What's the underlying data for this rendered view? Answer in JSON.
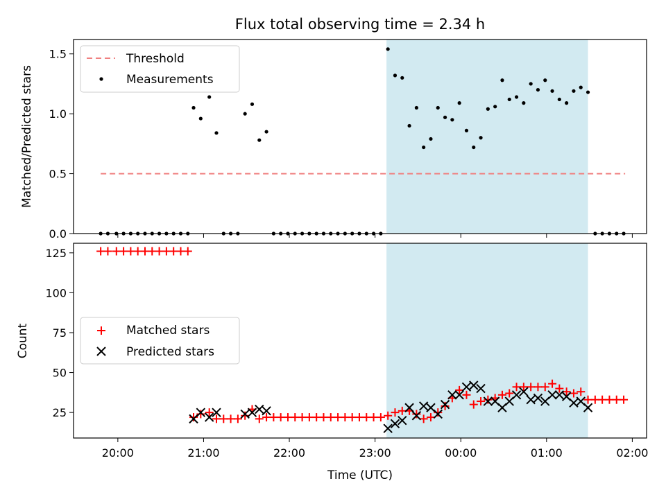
{
  "chart_data": [
    {
      "type": "scatter",
      "title": "Flux total observing time = 2.34 h",
      "xlabel": "",
      "ylabel": "Matched/Predicted stars",
      "xlim": [
        "19:29",
        "02:10"
      ],
      "ylim": [
        0,
        1.62
      ],
      "yticks": [
        0,
        0.5,
        1.0,
        1.5
      ],
      "ytick_labels": [
        "0.0",
        "0.5",
        "1.0",
        "1.5"
      ],
      "xticks": [
        "20:00",
        "21:00",
        "22:00",
        "23:00",
        "00:00",
        "01:00",
        "02:00"
      ],
      "legend": {
        "placement": "top-left",
        "entries": [
          "Threshold",
          "Measurements"
        ]
      },
      "colors": {
        "threshold": "#f08080",
        "measurement": "#000000",
        "span": "#add8e6"
      },
      "threshold": {
        "value": 0.5,
        "x_range": [
          "19:48",
          "01:55"
        ]
      },
      "highlight_span": [
        "23:08",
        "01:29"
      ],
      "series": [
        {
          "name": "Measurements",
          "points": [
            [
              "19:48",
              0
            ],
            [
              "19:53",
              0
            ],
            [
              "19:59",
              0
            ],
            [
              "20:04",
              0
            ],
            [
              "20:09",
              0
            ],
            [
              "20:14",
              0
            ],
            [
              "20:19",
              0
            ],
            [
              "20:24",
              0
            ],
            [
              "20:29",
              0
            ],
            [
              "20:34",
              0
            ],
            [
              "20:39",
              0
            ],
            [
              "20:44",
              0
            ],
            [
              "20:49",
              0
            ],
            [
              "20:53",
              1.05
            ],
            [
              "20:58",
              0.96
            ],
            [
              "21:04",
              1.14
            ],
            [
              "21:09",
              0.84
            ],
            [
              "21:14",
              0
            ],
            [
              "21:19",
              0
            ],
            [
              "21:24",
              0
            ],
            [
              "21:29",
              1.0
            ],
            [
              "21:34",
              1.08
            ],
            [
              "21:39",
              0.78
            ],
            [
              "21:44",
              0.85
            ],
            [
              "21:49",
              0
            ],
            [
              "21:54",
              0
            ],
            [
              "21:59",
              0
            ],
            [
              "22:04",
              0
            ],
            [
              "22:09",
              0
            ],
            [
              "22:14",
              0
            ],
            [
              "22:19",
              0
            ],
            [
              "22:24",
              0
            ],
            [
              "22:29",
              0
            ],
            [
              "22:34",
              0
            ],
            [
              "22:39",
              0
            ],
            [
              "22:44",
              0
            ],
            [
              "22:49",
              0
            ],
            [
              "22:54",
              0
            ],
            [
              "22:59",
              0
            ],
            [
              "23:04",
              0
            ],
            [
              "23:09",
              1.54
            ],
            [
              "23:14",
              1.32
            ],
            [
              "23:19",
              1.3
            ],
            [
              "23:24",
              0.9
            ],
            [
              "23:29",
              1.05
            ],
            [
              "23:34",
              0.72
            ],
            [
              "23:39",
              0.79
            ],
            [
              "23:44",
              1.05
            ],
            [
              "23:49",
              0.97
            ],
            [
              "23:54",
              0.95
            ],
            [
              "23:59",
              1.09
            ],
            [
              "00:04",
              0.86
            ],
            [
              "00:09",
              0.72
            ],
            [
              "00:14",
              0.8
            ],
            [
              "00:19",
              1.04
            ],
            [
              "00:24",
              1.06
            ],
            [
              "00:29",
              1.28
            ],
            [
              "00:34",
              1.12
            ],
            [
              "00:39",
              1.14
            ],
            [
              "00:44",
              1.09
            ],
            [
              "00:49",
              1.25
            ],
            [
              "00:54",
              1.2
            ],
            [
              "00:59",
              1.28
            ],
            [
              "01:04",
              1.19
            ],
            [
              "01:09",
              1.12
            ],
            [
              "01:14",
              1.09
            ],
            [
              "01:19",
              1.19
            ],
            [
              "01:24",
              1.22
            ],
            [
              "01:29",
              1.18
            ],
            [
              "01:34",
              0
            ],
            [
              "01:39",
              0
            ],
            [
              "01:44",
              0
            ],
            [
              "01:49",
              0
            ],
            [
              "01:54",
              0
            ]
          ]
        }
      ]
    },
    {
      "type": "scatter",
      "title": "",
      "xlabel": "Time (UTC)",
      "ylabel": "Count",
      "xlim": [
        "19:29",
        "02:10"
      ],
      "ylim": [
        9,
        131
      ],
      "yticks": [
        25,
        50,
        75,
        100,
        125
      ],
      "xticks": [
        "20:00",
        "21:00",
        "22:00",
        "23:00",
        "00:00",
        "01:00",
        "02:00"
      ],
      "legend": {
        "placement": "center-left",
        "entries": [
          "Matched stars",
          "Predicted stars"
        ]
      },
      "colors": {
        "matched": "#ff0000",
        "predicted": "#000000",
        "span": "#add8e6"
      },
      "highlight_span": [
        "23:08",
        "01:29"
      ],
      "series": [
        {
          "name": "Matched stars",
          "marker": "+",
          "points": [
            [
              "19:48",
              126
            ],
            [
              "19:53",
              126
            ],
            [
              "19:59",
              126
            ],
            [
              "20:04",
              126
            ],
            [
              "20:09",
              126
            ],
            [
              "20:14",
              126
            ],
            [
              "20:19",
              126
            ],
            [
              "20:24",
              126
            ],
            [
              "20:29",
              126
            ],
            [
              "20:34",
              126
            ],
            [
              "20:39",
              126
            ],
            [
              "20:44",
              126
            ],
            [
              "20:49",
              126
            ],
            [
              "20:53",
              22
            ],
            [
              "20:58",
              24
            ],
            [
              "21:04",
              25
            ],
            [
              "21:09",
              21
            ],
            [
              "21:14",
              21
            ],
            [
              "21:19",
              21
            ],
            [
              "21:24",
              21
            ],
            [
              "21:29",
              23
            ],
            [
              "21:34",
              27
            ],
            [
              "21:39",
              21
            ],
            [
              "21:44",
              22
            ],
            [
              "21:49",
              22
            ],
            [
              "21:54",
              22
            ],
            [
              "21:59",
              22
            ],
            [
              "22:04",
              22
            ],
            [
              "22:09",
              22
            ],
            [
              "22:14",
              22
            ],
            [
              "22:19",
              22
            ],
            [
              "22:24",
              22
            ],
            [
              "22:29",
              22
            ],
            [
              "22:34",
              22
            ],
            [
              "22:39",
              22
            ],
            [
              "22:44",
              22
            ],
            [
              "22:49",
              22
            ],
            [
              "22:54",
              22
            ],
            [
              "22:59",
              22
            ],
            [
              "23:04",
              22
            ],
            [
              "23:09",
              23
            ],
            [
              "23:14",
              25
            ],
            [
              "23:19",
              26
            ],
            [
              "23:24",
              26
            ],
            [
              "23:29",
              24
            ],
            [
              "23:34",
              21
            ],
            [
              "23:39",
              22
            ],
            [
              "23:44",
              25
            ],
            [
              "23:49",
              29
            ],
            [
              "23:54",
              34
            ],
            [
              "23:59",
              39
            ],
            [
              "00:04",
              36
            ],
            [
              "00:09",
              30
            ],
            [
              "00:14",
              32
            ],
            [
              "00:19",
              33
            ],
            [
              "00:24",
              34
            ],
            [
              "00:29",
              36
            ],
            [
              "00:34",
              37
            ],
            [
              "00:39",
              41
            ],
            [
              "00:44",
              41
            ],
            [
              "00:49",
              41
            ],
            [
              "00:54",
              41
            ],
            [
              "00:59",
              41
            ],
            [
              "01:04",
              43
            ],
            [
              "01:09",
              40
            ],
            [
              "01:14",
              38
            ],
            [
              "01:19",
              37
            ],
            [
              "01:24",
              38
            ],
            [
              "01:29",
              33
            ],
            [
              "01:34",
              33
            ],
            [
              "01:39",
              33
            ],
            [
              "01:44",
              33
            ],
            [
              "01:49",
              33
            ],
            [
              "01:54",
              33
            ]
          ]
        },
        {
          "name": "Predicted stars",
          "marker": "x",
          "points": [
            [
              "20:53",
              21
            ],
            [
              "20:58",
              25
            ],
            [
              "21:04",
              22
            ],
            [
              "21:09",
              25
            ],
            [
              "21:29",
              24
            ],
            [
              "21:34",
              25
            ],
            [
              "21:39",
              27
            ],
            [
              "21:44",
              26
            ],
            [
              "23:09",
              15
            ],
            [
              "23:14",
              18
            ],
            [
              "23:19",
              20
            ],
            [
              "23:24",
              28
            ],
            [
              "23:29",
              23
            ],
            [
              "23:34",
              29
            ],
            [
              "23:39",
              28
            ],
            [
              "23:44",
              24
            ],
            [
              "23:49",
              30
            ],
            [
              "23:54",
              36
            ],
            [
              "23:59",
              36
            ],
            [
              "00:04",
              41
            ],
            [
              "00:09",
              42
            ],
            [
              "00:14",
              40
            ],
            [
              "00:19",
              32
            ],
            [
              "00:24",
              32
            ],
            [
              "00:29",
              28
            ],
            [
              "00:34",
              32
            ],
            [
              "00:39",
              36
            ],
            [
              "00:44",
              38
            ],
            [
              "00:49",
              33
            ],
            [
              "00:54",
              34
            ],
            [
              "00:59",
              32
            ],
            [
              "01:04",
              36
            ],
            [
              "01:09",
              36
            ],
            [
              "01:14",
              35
            ],
            [
              "01:19",
              31
            ],
            [
              "01:24",
              32
            ],
            [
              "01:29",
              28
            ]
          ]
        }
      ]
    }
  ]
}
